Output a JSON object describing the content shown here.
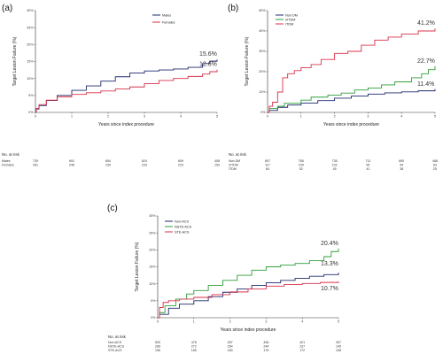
{
  "chart_data": [
    {
      "panel": "(a)",
      "type": "line",
      "xlabel": "Years since index procedure",
      "ylabel": "Target Lesion Failure (%)",
      "xlim": [
        0,
        5
      ],
      "ylim": [
        0,
        30
      ],
      "yticks": [
        "0%",
        "5%",
        "10%",
        "15%",
        "20%",
        "25%",
        "30%"
      ],
      "xticks": [
        "0",
        "1",
        "2",
        "3",
        "4",
        "5"
      ],
      "series": [
        {
          "name": "Males",
          "color": "#1f2a6b",
          "end_label": "15.6%",
          "x": [
            0,
            0.02,
            0.1,
            0.3,
            0.6,
            1.0,
            1.4,
            1.8,
            2.2,
            2.6,
            3.0,
            3.4,
            3.8,
            4.2,
            4.6,
            4.8,
            5.0
          ],
          "y": [
            0,
            1.0,
            2.0,
            3.5,
            5.0,
            6.5,
            7.8,
            9.2,
            10.5,
            11.6,
            12.2,
            12.5,
            12.8,
            13.3,
            14.4,
            15.1,
            15.6
          ]
        },
        {
          "name": "Females",
          "color": "#d9304a",
          "end_label": "12.6%",
          "x": [
            0,
            0.02,
            0.1,
            0.3,
            0.6,
            1.0,
            1.4,
            1.8,
            2.2,
            2.6,
            3.0,
            3.4,
            3.8,
            4.2,
            4.6,
            4.8,
            5.0
          ],
          "y": [
            0,
            1.2,
            2.3,
            3.6,
            4.6,
            5.3,
            5.8,
            6.3,
            6.9,
            7.5,
            8.5,
            9.4,
            10.0,
            10.6,
            11.3,
            12.0,
            12.6
          ]
        }
      ],
      "risk_table": {
        "title": "No. at risk",
        "rows": [
          {
            "label": "Males",
            "values": [
              "739",
              "691",
              "654",
              "624",
              "609",
              "408"
            ]
          },
          {
            "label": "Females",
            "values": [
              "261",
              "246",
              "239",
              "233",
              "223",
              "153"
            ]
          }
        ]
      }
    },
    {
      "panel": "(b)",
      "type": "line",
      "xlabel": "Years since index procedure",
      "ylabel": "Target Lesion Failure (%)",
      "xlim": [
        0,
        5
      ],
      "ylim": [
        0,
        50
      ],
      "yticks": [
        "0%",
        "10%",
        "20%",
        "30%",
        "40%",
        "50%"
      ],
      "xticks": [
        "0",
        "1",
        "2",
        "3",
        "4",
        "5"
      ],
      "series": [
        {
          "name": "Non DM",
          "color": "#1f2a6b",
          "end_label": "11.4%",
          "x": [
            0,
            0.05,
            0.3,
            0.6,
            1.0,
            1.5,
            2.0,
            2.5,
            3.0,
            3.5,
            4.0,
            4.5,
            5.0
          ],
          "y": [
            0,
            1.0,
            2.5,
            3.6,
            4.6,
            5.8,
            7.0,
            8.0,
            9.0,
            9.6,
            10.1,
            10.6,
            11.4
          ]
        },
        {
          "name": "nITDM",
          "color": "#2e9e3a",
          "end_label": "22.7%",
          "x": [
            0,
            0.05,
            0.3,
            0.5,
            1.0,
            1.3,
            1.8,
            2.2,
            2.6,
            3.0,
            3.4,
            3.8,
            4.3,
            4.6,
            4.8,
            5.0
          ],
          "y": [
            0,
            2.0,
            3.0,
            4.5,
            6.0,
            7.5,
            8.5,
            9.5,
            11.0,
            12.0,
            13.5,
            15.0,
            17.0,
            19.0,
            21.0,
            22.7
          ]
        },
        {
          "name": "ITDM",
          "color": "#d9304a",
          "end_label": "41.2%",
          "x": [
            0,
            0.05,
            0.15,
            0.3,
            0.45,
            0.6,
            0.8,
            1.0,
            1.3,
            1.6,
            2.0,
            2.4,
            2.8,
            3.2,
            3.6,
            4.0,
            4.5,
            5.0
          ],
          "y": [
            0,
            3.0,
            5.0,
            10.0,
            17.0,
            19.0,
            20.5,
            22.0,
            23.5,
            26.0,
            29.0,
            30.0,
            33.0,
            35.5,
            37.0,
            38.5,
            40.0,
            41.2
          ]
        }
      ],
      "risk_table": {
        "title": "No. at risk",
        "rows": [
          {
            "label": "Non DM",
            "values": [
              "807",
              "765",
              "735",
              "711",
              "690",
              "468"
            ]
          },
          {
            "label": "nITDM",
            "values": [
              "117",
              "109",
              "102",
              "95",
              "94",
              "63"
            ]
          },
          {
            "label": "ITDM",
            "values": [
              "64",
              "52",
              "45",
              "41",
              "38",
              "25"
            ]
          }
        ]
      }
    },
    {
      "panel": "(c)",
      "type": "line",
      "xlabel": "Years since index procedure",
      "ylabel": "Target Lesion Failure (%)",
      "xlim": [
        0,
        5
      ],
      "ylim": [
        0,
        30
      ],
      "yticks": [
        "0%",
        "5%",
        "10%",
        "15%",
        "20%",
        "25%",
        "30%"
      ],
      "xticks": [
        "0",
        "1",
        "2",
        "3",
        "4",
        "5"
      ],
      "series": [
        {
          "name": "Non-ACS",
          "color": "#1f2a6b",
          "end_label": "13.3%",
          "x": [
            0,
            0.05,
            0.3,
            0.6,
            1.0,
            1.4,
            1.8,
            2.2,
            2.6,
            3.0,
            3.4,
            3.8,
            4.2,
            4.6,
            5.0
          ],
          "y": [
            0,
            1.0,
            2.8,
            4.0,
            5.0,
            6.2,
            7.5,
            8.5,
            9.5,
            10.3,
            11.0,
            11.6,
            12.2,
            12.7,
            13.3
          ]
        },
        {
          "name": "NSTE-ACS",
          "color": "#2e9e3a",
          "end_label": "20.4%",
          "x": [
            0,
            0.05,
            0.2,
            0.5,
            0.8,
            1.0,
            1.4,
            1.8,
            2.2,
            2.6,
            3.0,
            3.4,
            3.8,
            4.2,
            4.6,
            4.8,
            5.0
          ],
          "y": [
            0,
            1.5,
            3.5,
            5.5,
            7.0,
            8.0,
            9.5,
            11.0,
            12.5,
            14.0,
            15.0,
            15.5,
            16.0,
            16.8,
            18.0,
            19.5,
            20.4
          ]
        },
        {
          "name": "STE-ACS",
          "color": "#d9304a",
          "end_label": "10.7%",
          "x": [
            0,
            0.05,
            0.15,
            0.3,
            0.6,
            1.0,
            1.5,
            2.0,
            2.5,
            3.0,
            3.5,
            4.0,
            4.5,
            5.0
          ],
          "y": [
            0,
            3.0,
            4.5,
            5.0,
            5.5,
            6.0,
            6.8,
            7.6,
            8.5,
            9.3,
            9.8,
            10.1,
            10.4,
            10.7
          ]
        }
      ],
      "risk_table": {
        "title": "No. at risk",
        "rows": [
          {
            "label": "Non-ACS",
            "values": [
              "500",
              "478",
              "457",
              "436",
              "421",
              "307"
            ]
          },
          {
            "label": "NSTE-ACS",
            "values": [
              "289",
              "272",
              "254",
              "244",
              "237",
              "145"
            ]
          },
          {
            "label": "STE-ACS",
            "values": [
              "196",
              "185",
              "180",
              "175",
              "172",
              "108"
            ]
          }
        ]
      }
    }
  ]
}
